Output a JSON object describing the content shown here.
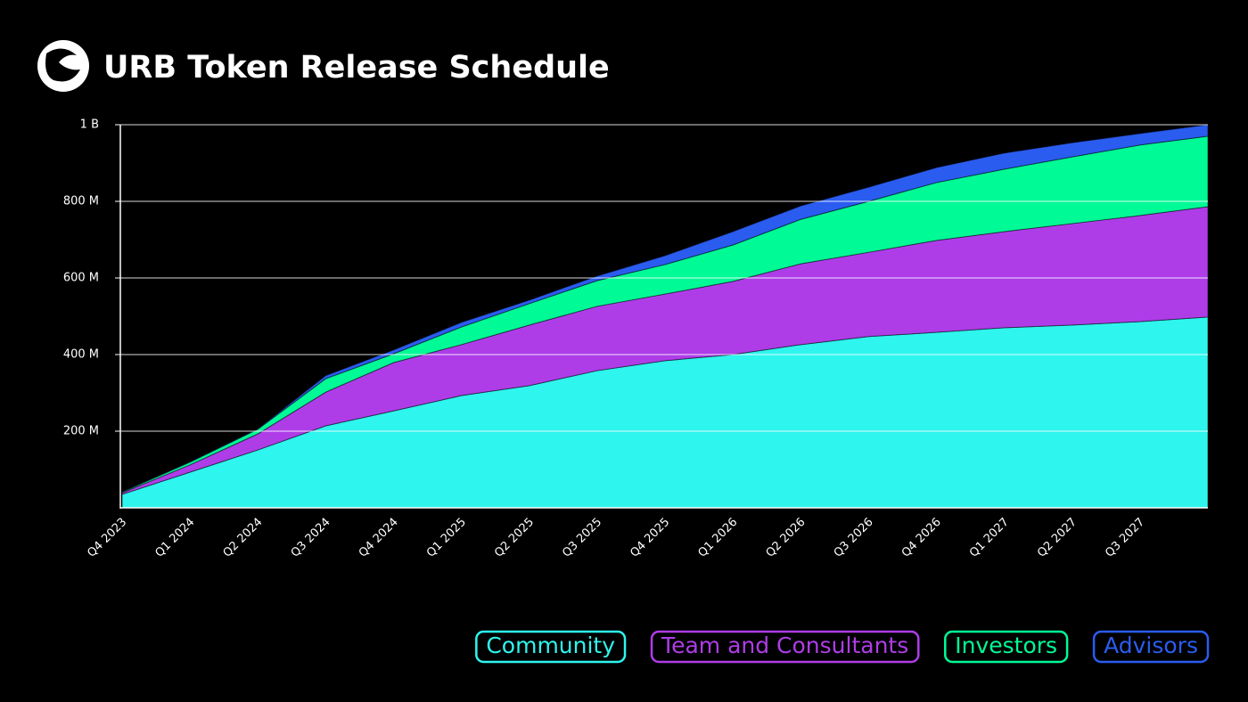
{
  "chart_data": {
    "type": "area",
    "title": "URB Token Release Schedule",
    "categories": [
      "Q4 2023",
      "Q1 2024",
      "Q2 2024",
      "Q3 2024",
      "Q4 2024",
      "Q1 2025",
      "Q2 2025",
      "Q3 2025",
      "Q4 2025",
      "Q1 2026",
      "Q2 2026",
      "Q3 2026",
      "Q4 2026",
      "Q1 2027",
      "Q2 2027",
      "Q3 2027",
      null
    ],
    "stacked": true,
    "ylim": [
      0,
      1000
    ],
    "yticks": [
      {
        "value": 200,
        "label": "200 M"
      },
      {
        "value": 400,
        "label": "400 M"
      },
      {
        "value": 600,
        "label": "600 M"
      },
      {
        "value": 800,
        "label": "800 M"
      },
      {
        "value": 1000,
        "label": "1 B"
      }
    ],
    "grid": true,
    "legend": "bottom-right",
    "series": [
      {
        "name": "Community",
        "color": "#2ef5ee",
        "values": [
          35,
          93,
          151,
          214,
          253,
          293,
          319,
          358,
          384,
          400,
          426,
          447,
          458,
          470,
          477,
          486,
          498
        ]
      },
      {
        "name": "Team and Consultants",
        "color": "#ae3de8",
        "values": [
          4,
          19,
          42,
          88,
          126,
          133,
          158,
          168,
          174,
          191,
          211,
          220,
          240,
          251,
          265,
          277,
          288
        ]
      },
      {
        "name": "Investors",
        "color": "#00fa96",
        "values": [
          2,
          7,
          12,
          35,
          23,
          46,
          56,
          67,
          77,
          95,
          116,
          133,
          151,
          163,
          174,
          184,
          184
        ]
      },
      {
        "name": "Advisors",
        "color": "#2a5cf0",
        "values": [
          1,
          1,
          1,
          8,
          10,
          12,
          9,
          12,
          23,
          35,
          35,
          37,
          39,
          42,
          37,
          30,
          30
        ]
      }
    ]
  }
}
